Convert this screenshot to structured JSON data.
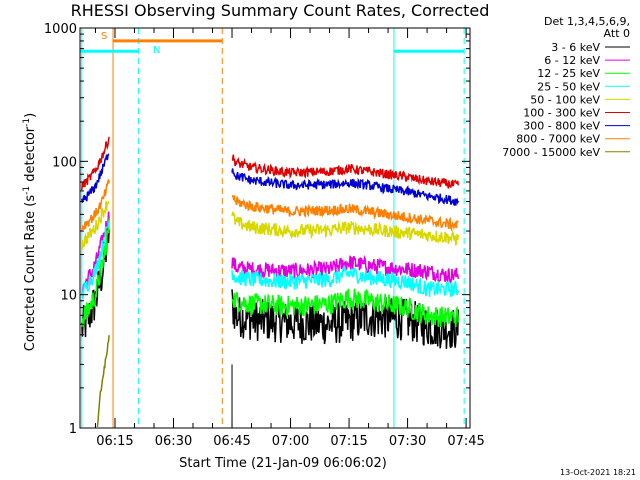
{
  "chart_data": {
    "type": "line",
    "title": "RHESSI Observing Summary Count Rates, Corrected",
    "xlabel": "Start Time (21-Jan-09 06:06:02)",
    "ylabel": "Corrected Count Rate (s",
    "ylabel_sup1": "-1",
    "ylabel_mid": " detector",
    "ylabel_sup2": "-1",
    "ylabel_end": ")",
    "yscale": "log",
    "xlim": [
      "06:06:02",
      "07:46:00"
    ],
    "ylim": [
      1,
      1000
    ],
    "grid": false,
    "x_ticks": [
      "06:15",
      "06:30",
      "06:45",
      "07:00",
      "07:15",
      "07:30",
      "07:45"
    ],
    "y_ticks": [
      "1",
      "10",
      "100",
      "1000"
    ],
    "legend": {
      "placement": "right",
      "header1": "Det 1,3,4,5,6,9,",
      "header2": "Att 0"
    },
    "series": [
      {
        "name": "3 - 6 keV",
        "color": "#000000",
        "segments": [
          {
            "x": [
              "06:06:30",
              "06:08:00",
              "06:10:00",
              "06:12:00",
              "06:13:30"
            ],
            "y": [
              5.5,
              6.5,
              9,
              16,
              30
            ]
          },
          {
            "x": [
              "06:45:00",
              "06:46:00",
              "06:50:00",
              "07:00:00",
              "07:10:00",
              "07:15:00",
              "07:20:00",
              "07:30:00",
              "07:35:00",
              "07:40:00",
              "07:43:00"
            ],
            "y": [
              8.5,
              7,
              6.5,
              6.2,
              6.0,
              6.3,
              6.8,
              6.5,
              5.8,
              5.6,
              5.5
            ]
          }
        ]
      },
      {
        "name": "6 - 12 keV",
        "color": "#e000e0",
        "segments": [
          {
            "x": [
              "06:06:30",
              "06:08:00",
              "06:10:00",
              "06:12:00",
              "06:13:30"
            ],
            "y": [
              11,
              13,
              17,
              27,
              40
            ]
          },
          {
            "x": [
              "06:45:00",
              "06:46:00",
              "06:50:00",
              "07:00:00",
              "07:10:00",
              "07:15:00",
              "07:20:00",
              "07:30:00",
              "07:35:00",
              "07:40:00",
              "07:43:00"
            ],
            "y": [
              18,
              16,
              15.5,
              15,
              15.5,
              17.5,
              16.5,
              15.5,
              15,
              14,
              14
            ]
          }
        ]
      },
      {
        "name": "12 - 25 keV",
        "color": "#00ff00",
        "segments": [
          {
            "x": [
              "06:06:30",
              "06:08:00",
              "06:10:00",
              "06:12:00",
              "06:13:30"
            ],
            "y": [
              6.5,
              7.5,
              10,
              18,
              32
            ]
          },
          {
            "x": [
              "06:45:00",
              "06:46:00",
              "06:50:00",
              "07:00:00",
              "07:10:00",
              "07:15:00",
              "07:20:00",
              "07:30:00",
              "07:35:00",
              "07:40:00",
              "07:43:00"
            ],
            "y": [
              10,
              9,
              8.5,
              8.2,
              8.5,
              9.5,
              9,
              8,
              7,
              6.8,
              6.8
            ]
          }
        ]
      },
      {
        "name": "25 - 50 keV",
        "color": "#00ffff",
        "segments": [
          {
            "x": [
              "06:06:30",
              "06:08:00",
              "06:10:00",
              "06:12:00",
              "06:13:30"
            ],
            "y": [
              10,
              12,
              15,
              24,
              36
            ]
          },
          {
            "x": [
              "06:45:00",
              "06:46:00",
              "06:50:00",
              "07:00:00",
              "07:10:00",
              "07:15:00",
              "07:20:00",
              "07:30:00",
              "07:35:00",
              "07:40:00",
              "07:43:00"
            ],
            "y": [
              15,
              13.5,
              13,
              12.5,
              13,
              14.5,
              13.5,
              12.5,
              11,
              11,
              11
            ]
          }
        ]
      },
      {
        "name": "50 - 100 keV",
        "color": "#d8d800",
        "segments": [
          {
            "x": [
              "06:06:30",
              "06:08:00",
              "06:10:00",
              "06:12:00",
              "06:13:30"
            ],
            "y": [
              24,
              27,
              32,
              42,
              52
            ]
          },
          {
            "x": [
              "06:45:00",
              "06:46:00",
              "06:50:00",
              "07:00:00",
              "07:10:00",
              "07:15:00",
              "07:20:00",
              "07:30:00",
              "07:35:00",
              "07:40:00",
              "07:43:00"
            ],
            "y": [
              40,
              35,
              32,
              30,
              30.5,
              32,
              31,
              29,
              28,
              27,
              26
            ]
          }
        ]
      },
      {
        "name": "100 - 300 keV",
        "color": "#e00000",
        "segments": [
          {
            "x": [
              "06:06:30",
              "06:08:00",
              "06:10:00",
              "06:12:00",
              "06:13:30"
            ],
            "y": [
              65,
              72,
              85,
              115,
              150
            ]
          },
          {
            "x": [
              "06:45:00",
              "06:46:00",
              "06:50:00",
              "07:00:00",
              "07:10:00",
              "07:15:00",
              "07:20:00",
              "07:30:00",
              "07:35:00",
              "07:40:00",
              "07:43:00"
            ],
            "y": [
              108,
              98,
              90,
              82,
              84,
              88,
              84,
              76,
              71,
              68,
              66
            ]
          }
        ]
      },
      {
        "name": "300 - 800 keV",
        "color": "#0000d0",
        "segments": [
          {
            "x": [
              "06:06:30",
              "06:08:00",
              "06:10:00",
              "06:12:00",
              "06:13:30"
            ],
            "y": [
              50,
              55,
              65,
              90,
              120
            ]
          },
          {
            "x": [
              "06:45:00",
              "06:46:00",
              "06:50:00",
              "07:00:00",
              "07:10:00",
              "07:15:00",
              "07:20:00",
              "07:30:00",
              "07:35:00",
              "07:40:00",
              "07:43:00"
            ],
            "y": [
              88,
              78,
              72,
              66,
              67,
              69,
              66,
              59,
              55,
              52,
              50
            ]
          }
        ]
      },
      {
        "name": "800 - 7000 keV",
        "color": "#ff8000",
        "segments": [
          {
            "x": [
              "06:06:30",
              "06:08:00",
              "06:10:00",
              "06:12:00",
              "06:13:30"
            ],
            "y": [
              32,
              35,
              40,
              52,
              70
            ]
          },
          {
            "x": [
              "06:45:00",
              "06:46:00",
              "06:50:00",
              "07:00:00",
              "07:10:00",
              "07:15:00",
              "07:20:00",
              "07:30:00",
              "07:35:00",
              "07:40:00",
              "07:43:00"
            ],
            "y": [
              56,
              50,
              46,
              42,
              43,
              44,
              42,
              38,
              36,
              34,
              33
            ]
          }
        ]
      },
      {
        "name": "7000 - 15000 keV",
        "color": "#808000",
        "segments": [
          {
            "x": [
              "06:10:30",
              "06:11:00",
              "06:12:00",
              "06:13:00",
              "06:13:30"
            ],
            "y": [
              1,
              1.6,
              2.5,
              3.8,
              5
            ]
          }
        ]
      }
    ],
    "annotations": {
      "spans": [
        {
          "label": "S",
          "color": "#ff8000",
          "from": "06:14:30",
          "to": "06:42:30",
          "y": 800
        },
        {
          "label": "N",
          "color": "#00ffff",
          "from": "06:06:02",
          "to": "06:21:00",
          "y": 670
        },
        {
          "label": "",
          "color": "#00ffff",
          "from": "07:26:30",
          "to": "07:44:30",
          "y": 670
        }
      ],
      "solid_lines": [
        {
          "color": "#00ffff",
          "x": "06:06:30"
        },
        {
          "color": "#ff8000",
          "x": "06:14:30"
        },
        {
          "color": "#00ffff",
          "x": "07:26:30"
        }
      ],
      "dashed_lines": [
        {
          "color": "#00ffff",
          "x": "06:21:00"
        },
        {
          "color": "#ff8000",
          "x": "06:42:30"
        },
        {
          "color": "#00ffff",
          "x": "07:44:30"
        }
      ],
      "black_line": "06:45:00"
    },
    "timestamp": "13-Oct-2021 18:21"
  }
}
